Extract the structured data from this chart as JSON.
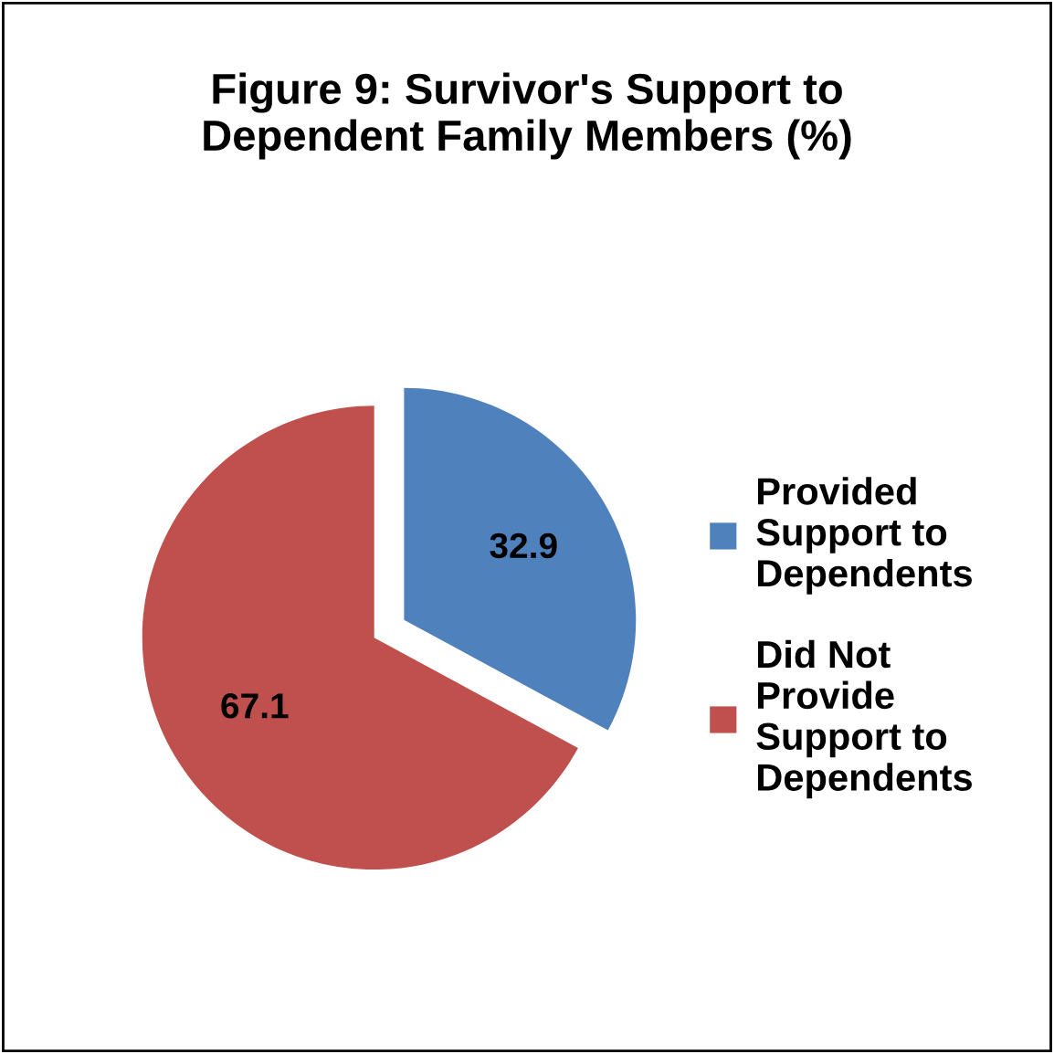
{
  "chart_data": {
    "type": "pie",
    "title": "Figure 9: Survivor's Support to\nDependent Family Members (%)",
    "categories": [
      "Provided\nSupport to\nDependents",
      "Did Not\nProvide\nSupport to\nDependents"
    ],
    "values": [
      32.9,
      67.1
    ],
    "colors": [
      "#4f81bd",
      "#c0504d"
    ],
    "data_labels": true,
    "legend": "right"
  }
}
